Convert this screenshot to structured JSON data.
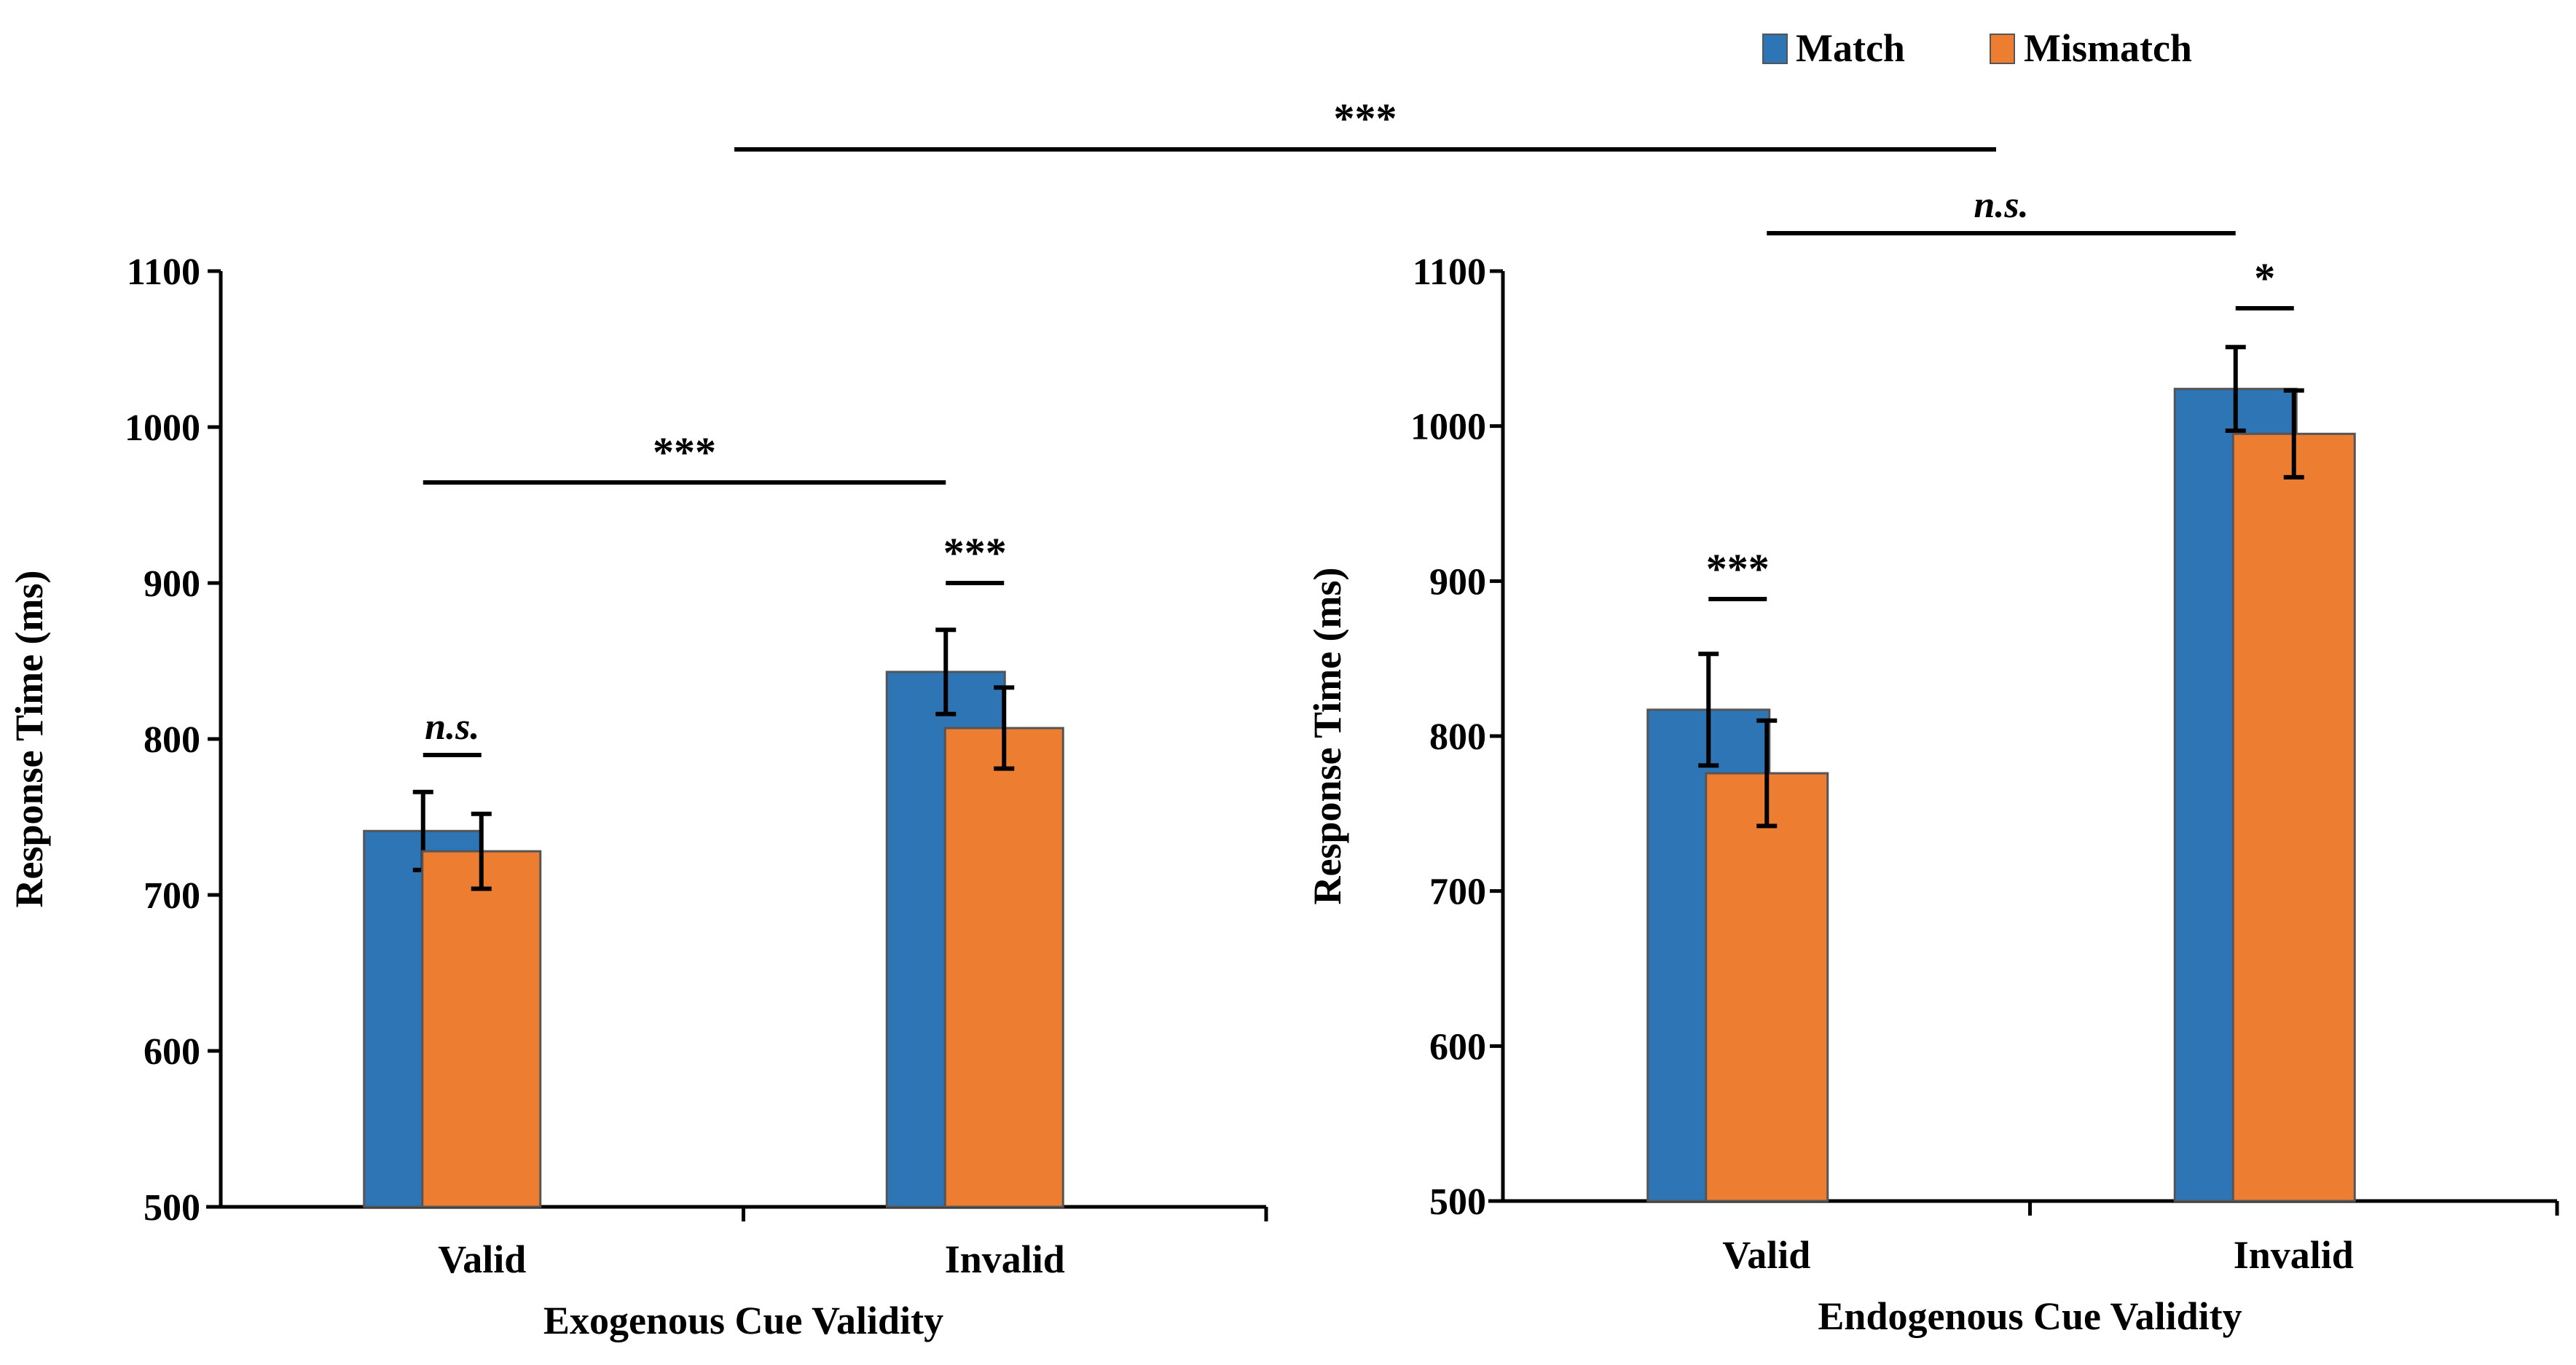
{
  "legend": {
    "items": [
      {
        "label": "Match",
        "color": "#2E75B6"
      },
      {
        "label": "Mismatch",
        "color": "#ED7D31"
      }
    ]
  },
  "top_comparison": {
    "label": "***"
  },
  "chart_data": [
    {
      "type": "bar",
      "xlabel": "Exogenous Cue Validity",
      "ylabel": "Response Time (ms)",
      "ylim": [
        500,
        1100
      ],
      "yticks": [
        500,
        600,
        700,
        800,
        900,
        1000,
        1100
      ],
      "categories": [
        "Valid",
        "Invalid"
      ],
      "series": [
        {
          "name": "Match",
          "values": [
            741,
            843
          ],
          "errors": [
            25,
            27
          ]
        },
        {
          "name": "Mismatch",
          "values": [
            728,
            807
          ],
          "errors": [
            24,
            26
          ]
        }
      ],
      "annotations": [
        {
          "label": "n.s.",
          "italic": true,
          "from": "Valid.Match",
          "to": "Valid.Mismatch"
        },
        {
          "label": "***",
          "from": "Invalid.Match",
          "to": "Invalid.Mismatch"
        },
        {
          "label": "***",
          "from": "Valid.Match",
          "to": "Invalid.Match"
        }
      ]
    },
    {
      "type": "bar",
      "xlabel": "Endogenous Cue Validity",
      "ylabel": "Response Time (ms)",
      "ylim": [
        500,
        1100
      ],
      "yticks": [
        500,
        600,
        700,
        800,
        900,
        1000,
        1100
      ],
      "categories": [
        "Valid",
        "Invalid"
      ],
      "series": [
        {
          "name": "Match",
          "values": [
            817,
            1024
          ],
          "errors": [
            36,
            27
          ]
        },
        {
          "name": "Mismatch",
          "values": [
            776,
            995
          ],
          "errors": [
            34,
            28
          ]
        }
      ],
      "annotations": [
        {
          "label": "***",
          "from": "Valid.Match",
          "to": "Valid.Mismatch"
        },
        {
          "label": "*",
          "from": "Invalid.Match",
          "to": "Invalid.Mismatch"
        },
        {
          "label": "n.s.",
          "italic": true,
          "from": "Valid.Mismatch",
          "to": "Invalid.Match"
        }
      ]
    }
  ]
}
